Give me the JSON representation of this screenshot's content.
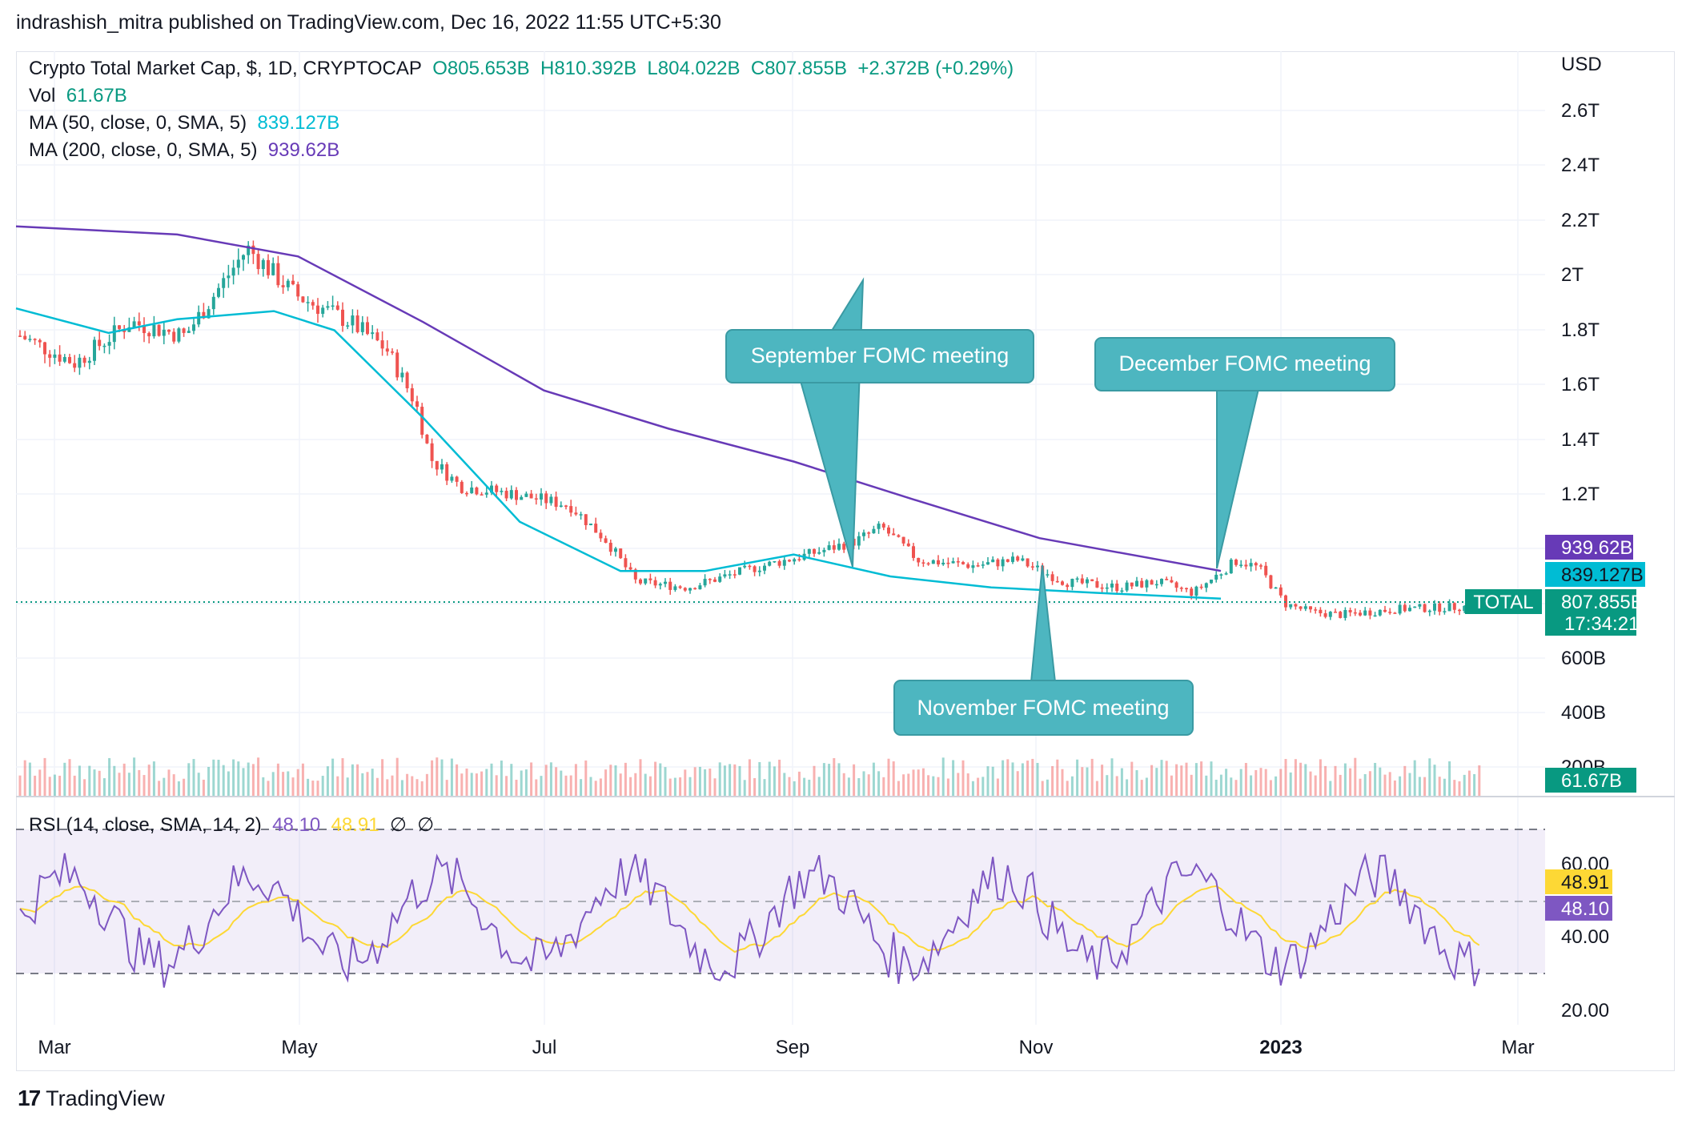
{
  "header": {
    "published_text": "indrashish_mitra published on TradingView.com, Dec 16, 2022 11:55 UTC+5:30"
  },
  "legend": {
    "symbol": "Crypto Total Market Cap, $, 1D, CRYPTOCAP",
    "open": "O805.653B",
    "high": "H810.392B",
    "low": "L804.022B",
    "close": "C807.855B",
    "change": "+2.372B (+0.29%)",
    "vol_label": "Vol",
    "vol_value": "61.67B",
    "ma50_label": "MA (50, close, 0, SMA, 5)",
    "ma50_value": "839.127B",
    "ma200_label": "MA (200, close, 0, SMA, 5)",
    "ma200_value": "939.62B",
    "rsi_label": "RSI (14, close, SMA, 14, 2)",
    "rsi_value": "48.10",
    "rsi_ma_value": "48.91",
    "rsi_extra1": "∅",
    "rsi_extra2": "∅"
  },
  "price_axis": {
    "currency": "USD",
    "ticks": [
      "2.6T",
      "2.4T",
      "2.2T",
      "2T",
      "1.8T",
      "1.6T",
      "1.4T",
      "1.2T",
      "600B",
      "400B",
      "200B"
    ]
  },
  "price_badges": {
    "ma200": "939.62B",
    "ma50": "839.127B",
    "symbol_tag": "TOTAL",
    "close": "807.855B",
    "countdown": "17:34:21",
    "volume": "61.67B"
  },
  "rsi_axis": {
    "ticks": [
      "60.00",
      "40.00",
      "20.00"
    ],
    "badge_ma": "48.91",
    "badge_rsi": "48.10"
  },
  "time_axis": {
    "labels": [
      "Mar",
      "May",
      "Jul",
      "Sep",
      "Nov",
      "2023",
      "Mar"
    ]
  },
  "callouts": [
    {
      "text": "September FOMC meeting"
    },
    {
      "text": "November FOMC meeting"
    },
    {
      "text": "December FOMC meeting"
    }
  ],
  "footer": {
    "logo_glyph": "17",
    "brand": "TradingView"
  },
  "colors": {
    "up": "#26a69a",
    "down": "#ef5350",
    "ma50": "#00bcd4",
    "ma200": "#673ab7",
    "rsi": "#7e57c2",
    "rsi_ma": "#fdd835",
    "callout": "#4db6c0",
    "close_badge": "#089981",
    "rsi_band": "#7e57c2"
  },
  "chart_data": {
    "type": "candlestick",
    "series": [
      {
        "name": "MA (50, close, 0, SMA, 5)",
        "points": [
          [
            "2022-02-20",
            "1.90T"
          ],
          [
            "2022-03-15",
            "1.81T"
          ],
          [
            "2022-04-01",
            "1.86T"
          ],
          [
            "2022-04-25",
            "1.89T"
          ],
          [
            "2022-05-10",
            "1.82T"
          ],
          [
            "2022-06-01",
            "1.50T"
          ],
          [
            "2022-06-25",
            "1.12T"
          ],
          [
            "2022-07-20",
            "0.94T"
          ],
          [
            "2022-08-10",
            "0.94T"
          ],
          [
            "2022-09-01",
            "1.00T"
          ],
          [
            "2022-09-25",
            "0.92T"
          ],
          [
            "2022-10-20",
            "0.88T"
          ],
          [
            "2022-11-15",
            "0.86T"
          ],
          [
            "2022-12-16",
            "0.839T"
          ]
        ]
      },
      {
        "name": "MA (200, close, 0, SMA, 5)",
        "points": [
          [
            "2022-02-20",
            "2.20T"
          ],
          [
            "2022-04-01",
            "2.17T"
          ],
          [
            "2022-05-01",
            "2.09T"
          ],
          [
            "2022-06-01",
            "1.85T"
          ],
          [
            "2022-07-01",
            "1.60T"
          ],
          [
            "2022-08-01",
            "1.46T"
          ],
          [
            "2022-09-01",
            "1.34T"
          ],
          [
            "2022-10-01",
            "1.20T"
          ],
          [
            "2022-11-01",
            "1.06T"
          ],
          [
            "2022-12-16",
            "0.94T"
          ]
        ]
      }
    ],
    "price_ylim": [
      "200B",
      "2.7T"
    ],
    "rsi_levels": [
      70,
      30
    ],
    "rsi_ylim": [
      20,
      75
    ],
    "annotations": [
      "September FOMC meeting",
      "November FOMC meeting",
      "December FOMC meeting"
    ]
  }
}
